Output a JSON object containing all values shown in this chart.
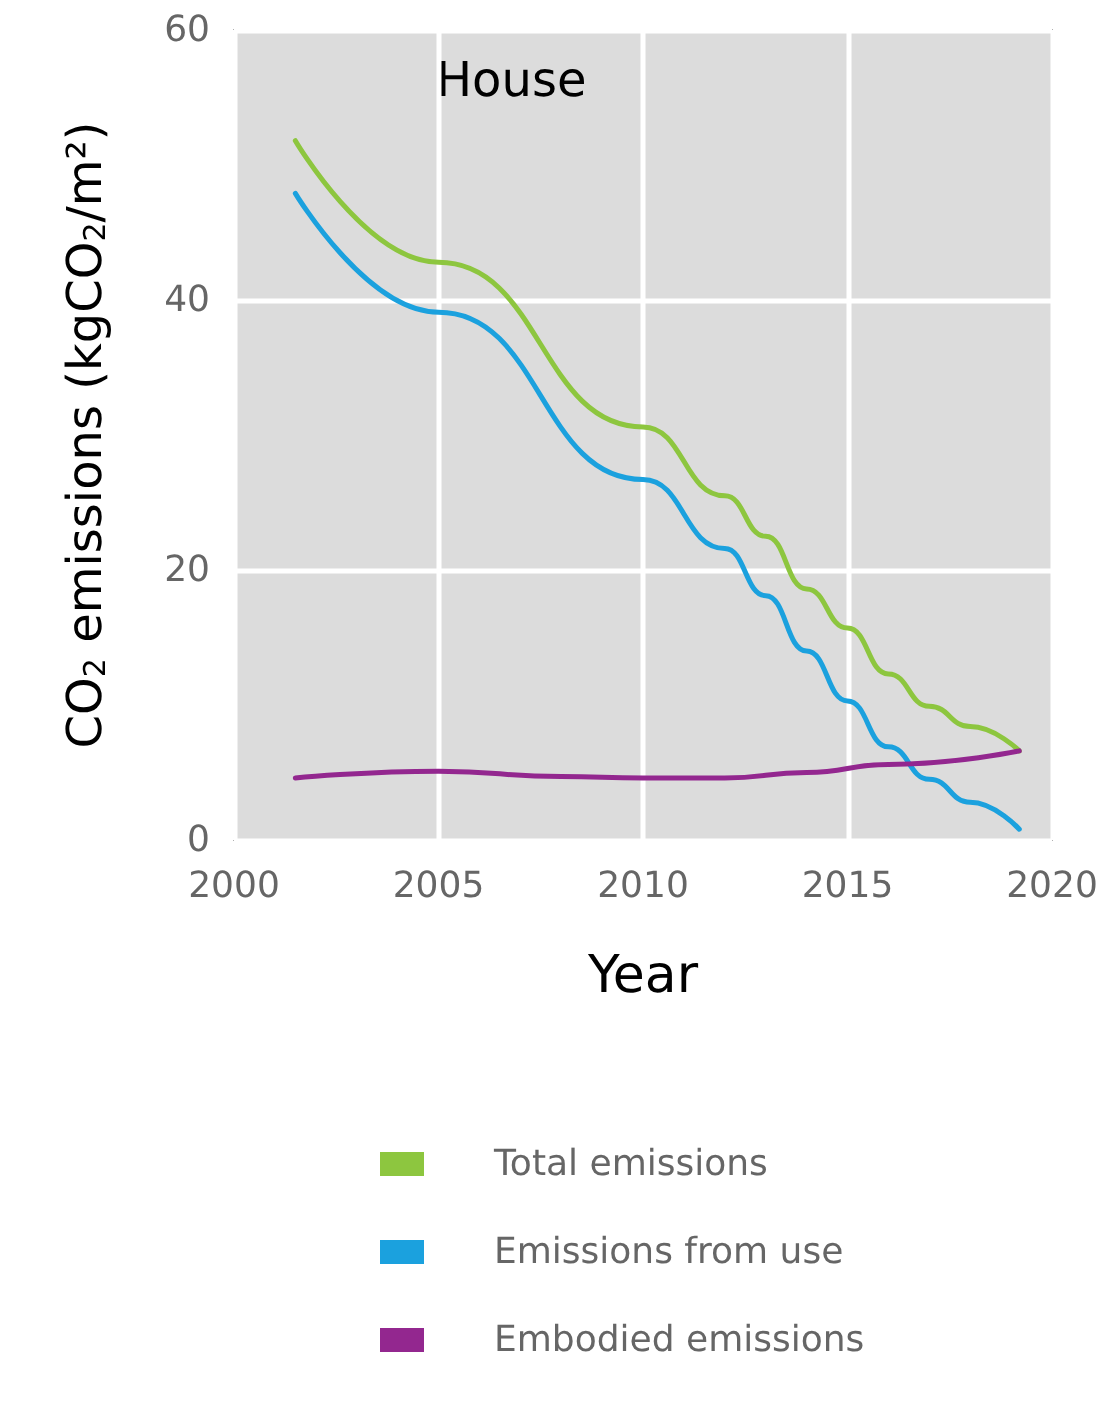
{
  "chart_data": {
    "type": "line",
    "xlabel": "Year",
    "ylabel": "CO$_{2}$ emissions (kgCO$_{2}$/m²)",
    "annotations": [
      "House"
    ],
    "xlim": [
      2000,
      2020
    ],
    "xticks": [
      2000,
      2005,
      2010,
      2015,
      2020
    ],
    "ylim": [
      0,
      60
    ],
    "yticks": [
      0,
      20,
      40,
      60
    ],
    "grid": true,
    "legend": "bottom",
    "marker": "none",
    "line_style": "solid",
    "series": [
      {
        "name": "Total emissions",
        "color": "#8dc63f",
        "x": [
          2001.5,
          2005,
          2010,
          2012,
          2013,
          2014,
          2015,
          2016,
          2017,
          2018,
          2019.2
        ],
        "values": [
          51.8,
          42.8,
          30.6,
          25.5,
          22.5,
          18.6,
          15.7,
          12.3,
          9.9,
          8.4,
          6.6
        ]
      },
      {
        "name": "Emissions from use",
        "color": "#1ba1de",
        "x": [
          2001.5,
          2005,
          2010,
          2012,
          2013,
          2014,
          2015,
          2016,
          2017,
          2018,
          2019.2
        ],
        "values": [
          47.9,
          39.1,
          26.7,
          21.6,
          18.1,
          14.0,
          10.3,
          6.9,
          4.5,
          2.8,
          0.8
        ]
      },
      {
        "name": "Embodied emissions",
        "color": "#93278f",
        "x": [
          2001.5,
          2005,
          2008,
          2010,
          2012,
          2014,
          2016,
          2019.2
        ],
        "values": [
          4.6,
          5.1,
          4.7,
          4.6,
          4.6,
          5.0,
          5.6,
          6.6
        ]
      }
    ]
  }
}
